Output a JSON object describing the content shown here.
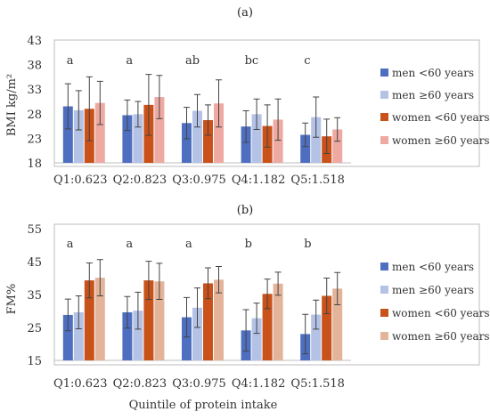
{
  "chart_data": [
    {
      "type": "bar",
      "title": "(a)",
      "ylabel": "BMI kg/m²",
      "xlabel": "",
      "categories": [
        "Q1:0.623",
        "Q2:0.823",
        "Q3:0.975",
        "Q4:1.182",
        "Q5:1.518"
      ],
      "ylim": [
        18,
        43
      ],
      "yticks": [
        18,
        23,
        28,
        33,
        38,
        43
      ],
      "grid": false,
      "legend_position": "right",
      "group_letters": [
        "a",
        "a",
        "ab",
        "bc",
        "c"
      ],
      "series": [
        {
          "name": "men <60 years",
          "color": "#4e6fc0",
          "values": [
            29.5,
            27.7,
            26.1,
            25.4,
            23.7
          ],
          "errors": [
            4.6,
            3.1,
            3.2,
            3.2,
            2.4
          ]
        },
        {
          "name": "men ≥60 years",
          "color": "#b4c2e6",
          "values": [
            28.7,
            27.9,
            28.6,
            27.9,
            27.3
          ],
          "errors": [
            4.0,
            2.6,
            3.3,
            3.1,
            4.1
          ]
        },
        {
          "name": "women <60 years",
          "color": "#c8521a",
          "values": [
            29.0,
            29.8,
            26.7,
            25.5,
            23.4
          ],
          "errors": [
            6.5,
            6.2,
            3.1,
            4.3,
            3.5
          ]
        },
        {
          "name": "women ≥60 years",
          "color": "#eeaaa2",
          "values": [
            30.2,
            31.4,
            30.1,
            26.8,
            24.8
          ],
          "errors": [
            4.4,
            4.4,
            4.8,
            4.2,
            2.4
          ]
        }
      ]
    },
    {
      "type": "bar",
      "title": "(b)",
      "ylabel": "FM%",
      "xlabel": "Quintile of protein intake",
      "categories": [
        "Q1:0.623",
        "Q2:0.823",
        "Q3:0.975",
        "Q4:1.182",
        "Q5:1.518"
      ],
      "ylim": [
        15,
        55
      ],
      "yticks": [
        15,
        25,
        35,
        45,
        55
      ],
      "grid": false,
      "legend_position": "right",
      "group_letters": [
        "a",
        "a",
        "a",
        "b",
        "b"
      ],
      "series": [
        {
          "name": "men <60 years",
          "color": "#4e6fc0",
          "values": [
            28.8,
            29.6,
            28.1,
            24.1,
            23.0
          ],
          "errors": [
            4.8,
            4.8,
            6.0,
            6.3,
            6.0
          ]
        },
        {
          "name": "men ≥60 years",
          "color": "#b4c2e6",
          "values": [
            29.6,
            30.1,
            31.0,
            27.8,
            28.9
          ],
          "errors": [
            5.0,
            5.6,
            6.0,
            4.6,
            4.4
          ]
        },
        {
          "name": "women <60 years",
          "color": "#c8521a",
          "values": [
            39.3,
            39.3,
            38.4,
            35.2,
            34.6
          ],
          "errors": [
            5.3,
            5.8,
            4.7,
            4.5,
            5.4
          ]
        },
        {
          "name": "women ≥60 years",
          "color": "#e3b49a",
          "values": [
            40.1,
            39.0,
            39.5,
            38.3,
            36.8
          ],
          "errors": [
            5.5,
            5.5,
            4.0,
            3.5,
            4.9
          ]
        }
      ]
    }
  ]
}
